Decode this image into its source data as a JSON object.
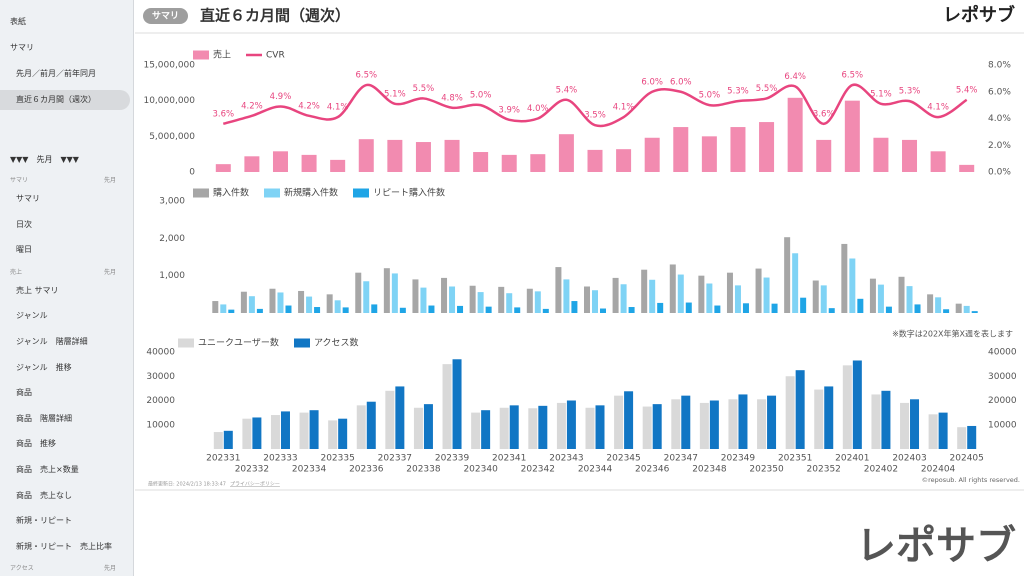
{
  "sidebar": {
    "cover": "表紙",
    "summary": {
      "title": "サマリ",
      "items": [
        "先月／前月／前年同月",
        "直近６カ月間（週次）"
      ]
    },
    "section": "▼▼▼　先月　▼▼▼",
    "groups": [
      {
        "title": "サマリ",
        "period": "先月",
        "items": [
          "サマリ",
          "日次",
          "曜日"
        ]
      },
      {
        "title": "売上",
        "period": "先月",
        "items": [
          "売上 サマリ",
          "ジャンル",
          "ジャンル　階層詳細",
          "ジャンル　推移",
          "商品",
          "商品　階層詳細",
          "商品　推移",
          "商品　売上×数量",
          "商品　売上なし",
          "新規・リピート",
          "新規・リピート　売上比率"
        ]
      },
      {
        "title": "アクセス",
        "period": "先月",
        "items": []
      }
    ]
  },
  "header": {
    "badge": "サマリ",
    "title": "直近６カ月間（週次）",
    "logo": "レポサブ"
  },
  "chart_data": [
    {
      "type": "combo",
      "ylim": [
        0,
        15000000
      ],
      "yticks": [
        0,
        {
          "value": 5000000,
          "label": "5,000,000"
        },
        {
          "value": 10000000,
          "label": "10,000,000"
        },
        {
          "value": 15000000,
          "label": "15,000,000"
        }
      ],
      "y2lim": [
        0,
        8
      ],
      "y2ticks": [
        {
          "value": 0,
          "label": "0.0%"
        },
        {
          "value": 2,
          "label": "2.0%"
        },
        {
          "value": 4,
          "label": "4.0%"
        },
        {
          "value": 6,
          "label": "6.0%"
        },
        {
          "value": 8,
          "label": "8.0%"
        }
      ],
      "series": [
        {
          "name": "売上",
          "type": "bar",
          "color": "#f28bb0",
          "values": [
            1100000,
            2200000,
            2900000,
            2400000,
            1700000,
            4600000,
            4500000,
            4200000,
            4500000,
            2800000,
            2400000,
            2500000,
            5300000,
            3100000,
            3200000,
            4800000,
            6300000,
            5000000,
            6300000,
            7000000,
            10400000,
            4500000,
            10000000,
            4800000,
            4500000,
            2900000,
            1000000
          ]
        },
        {
          "name": "CVR",
          "type": "line",
          "axis": "y2",
          "color": "#e8457f",
          "values": [
            3.6,
            4.2,
            4.9,
            4.2,
            4.1,
            6.5,
            5.1,
            5.5,
            4.8,
            5.0,
            3.9,
            4.0,
            5.4,
            3.5,
            4.1,
            6.0,
            6.0,
            5.0,
            5.3,
            5.5,
            6.4,
            3.6,
            6.5,
            5.1,
            5.3,
            4.1,
            5.4
          ],
          "value_labels": [
            "3.6%",
            "4.2%",
            "4.9%",
            "4.2%",
            "4.1%",
            "6.5%",
            "5.1%",
            "5.5%",
            "4.8%",
            "5.0%",
            "3.9%",
            "4.0%",
            "5.4%",
            "3.5%",
            "4.1%",
            "6.0%",
            "6.0%",
            "5.0%",
            "5.3%",
            "5.5%",
            "6.4%",
            "3.6%",
            "6.5%",
            "5.1%",
            "5.3%",
            "4.1%",
            "5.4%"
          ]
        }
      ]
    },
    {
      "type": "bar",
      "ylim": [
        0,
        3000
      ],
      "yticks": [
        {
          "value": 1000,
          "label": "1,000"
        },
        {
          "value": 2000,
          "label": "2,000"
        },
        {
          "value": 3000,
          "label": "3,000"
        }
      ],
      "series": [
        {
          "name": "購入件数",
          "color": "#a6a6a6",
          "values": [
            320,
            570,
            650,
            590,
            500,
            1080,
            1200,
            900,
            940,
            730,
            700,
            650,
            1230,
            710,
            940,
            1160,
            1300,
            1000,
            1080,
            1190,
            2030,
            870,
            1850,
            920,
            970,
            500,
            250
          ]
        },
        {
          "name": "新規購入件数",
          "color": "#7fd3f5",
          "values": [
            230,
            450,
            550,
            440,
            340,
            850,
            1060,
            680,
            710,
            560,
            530,
            580,
            900,
            610,
            770,
            890,
            1030,
            790,
            740,
            950,
            1600,
            740,
            1460,
            760,
            720,
            420,
            190
          ]
        },
        {
          "name": "リピート購入件数",
          "color": "#1fa5e6",
          "values": [
            90,
            110,
            200,
            160,
            150,
            230,
            140,
            200,
            190,
            170,
            150,
            110,
            320,
            120,
            160,
            270,
            280,
            200,
            260,
            250,
            410,
            130,
            380,
            170,
            230,
            100,
            50
          ]
        }
      ]
    },
    {
      "type": "bar",
      "note": "※数字は202X年第X週を表します",
      "categories": [
        "202331",
        "202332",
        "202333",
        "202334",
        "202335",
        "202336",
        "202337",
        "202338",
        "202339",
        "202340",
        "202341",
        "202342",
        "202343",
        "202344",
        "202345",
        "202346",
        "202347",
        "202348",
        "202349",
        "202350",
        "202351",
        "202352",
        "202401",
        "202402",
        "202403",
        "202404",
        "202405"
      ],
      "ylim": [
        0,
        40000
      ],
      "yticks": [
        10000,
        20000,
        30000,
        40000
      ],
      "y2lim": [
        0,
        40000
      ],
      "y2ticks": [
        10000,
        20000,
        30000,
        40000
      ],
      "series": [
        {
          "name": "ユニークユーザー数",
          "color": "#d9d9d9",
          "values": [
            7000,
            12500,
            14000,
            15000,
            11800,
            18000,
            24000,
            17000,
            35000,
            15000,
            17000,
            16800,
            19000,
            17000,
            22000,
            17500,
            20500,
            19000,
            20500,
            20500,
            30000,
            24500,
            34500,
            22500,
            19000,
            14300,
            9000
          ]
        },
        {
          "name": "アクセス数",
          "color": "#1176c4",
          "axis": "y2",
          "values": [
            7500,
            13000,
            15500,
            16000,
            12500,
            19500,
            25800,
            18500,
            37000,
            16000,
            18000,
            17800,
            20000,
            18000,
            23800,
            18500,
            22000,
            20000,
            22500,
            22000,
            32500,
            25800,
            36500,
            24000,
            20500,
            15000,
            9500
          ]
        }
      ]
    }
  ],
  "footer": {
    "updated": "最終更新日: 2024/2/13 18:33:47",
    "privacy": "プライバシーポリシー",
    "copyright": "©reposub. All rights reserved."
  },
  "watermark": "レポサブ"
}
